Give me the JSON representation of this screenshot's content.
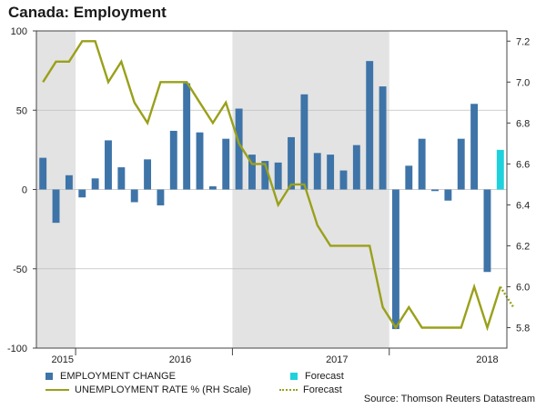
{
  "title": "Canada: Employment",
  "source": "Source: Thomson Reuters Datastream",
  "colors": {
    "bar": "#3e74a8",
    "forecast_bar": "#1fd1dc",
    "line": "#9aa01a",
    "shade": "#e3e3e3",
    "grid": "#bfbfbf"
  },
  "chart_data": {
    "type": "bar+line",
    "title": "Canada: Employment",
    "left_axis": {
      "range": [
        -100,
        100
      ],
      "ticks": [
        100,
        50,
        0,
        -50,
        -100
      ]
    },
    "right_axis": {
      "range": [
        5.7,
        7.25
      ],
      "ticks": [
        7.2,
        7.0,
        6.8,
        6.6,
        6.4,
        6.2,
        6.0,
        5.8
      ],
      "label": "RH Scale"
    },
    "x_labels": [
      {
        "label": "2015",
        "center_index": 1.5
      },
      {
        "label": "2016",
        "center_index": 10.5
      },
      {
        "label": "2017",
        "center_index": 22.5
      },
      {
        "label": "2018",
        "center_index": 34
      }
    ],
    "year_boundaries": [
      3,
      15,
      27
    ],
    "shaded_ranges": [
      [
        -0.5,
        3
      ],
      [
        15,
        27
      ]
    ],
    "series": [
      {
        "name": "EMPLOYMENT CHANGE",
        "type": "bar",
        "values": [
          20,
          -21,
          9,
          -5,
          7,
          31,
          14,
          -8,
          19,
          -10,
          37,
          67,
          36,
          2,
          32,
          51,
          22,
          18,
          17,
          33,
          60,
          23,
          22,
          12,
          28,
          81,
          65,
          -88,
          15,
          32,
          -1,
          -7,
          32,
          54,
          -52
        ]
      },
      {
        "name": "Forecast",
        "type": "bar",
        "index": 35,
        "value": 25
      },
      {
        "name": "UNEMPLOYMENT RATE % (RH Scale)",
        "type": "line",
        "values": [
          7.0,
          7.1,
          7.1,
          7.2,
          7.2,
          7.0,
          7.1,
          6.9,
          6.8,
          7.0,
          7.0,
          7.0,
          6.9,
          6.8,
          6.9,
          6.7,
          6.6,
          6.6,
          6.4,
          6.5,
          6.5,
          6.3,
          6.2,
          6.2,
          6.2,
          6.2,
          5.9,
          5.8,
          5.9,
          5.8,
          5.8,
          5.8,
          5.8,
          6.0,
          5.8,
          6.0
        ]
      },
      {
        "name": "Forecast",
        "type": "line-dotted",
        "values": [
          [
            35,
            6.0
          ],
          [
            36,
            5.9
          ]
        ]
      }
    ]
  },
  "legend": {
    "bar_label": "EMPLOYMENT CHANGE",
    "bar_forecast_label": "Forecast",
    "line_label": "UNEMPLOYMENT RATE % (RH Scale)",
    "line_forecast_label": "Forecast"
  }
}
